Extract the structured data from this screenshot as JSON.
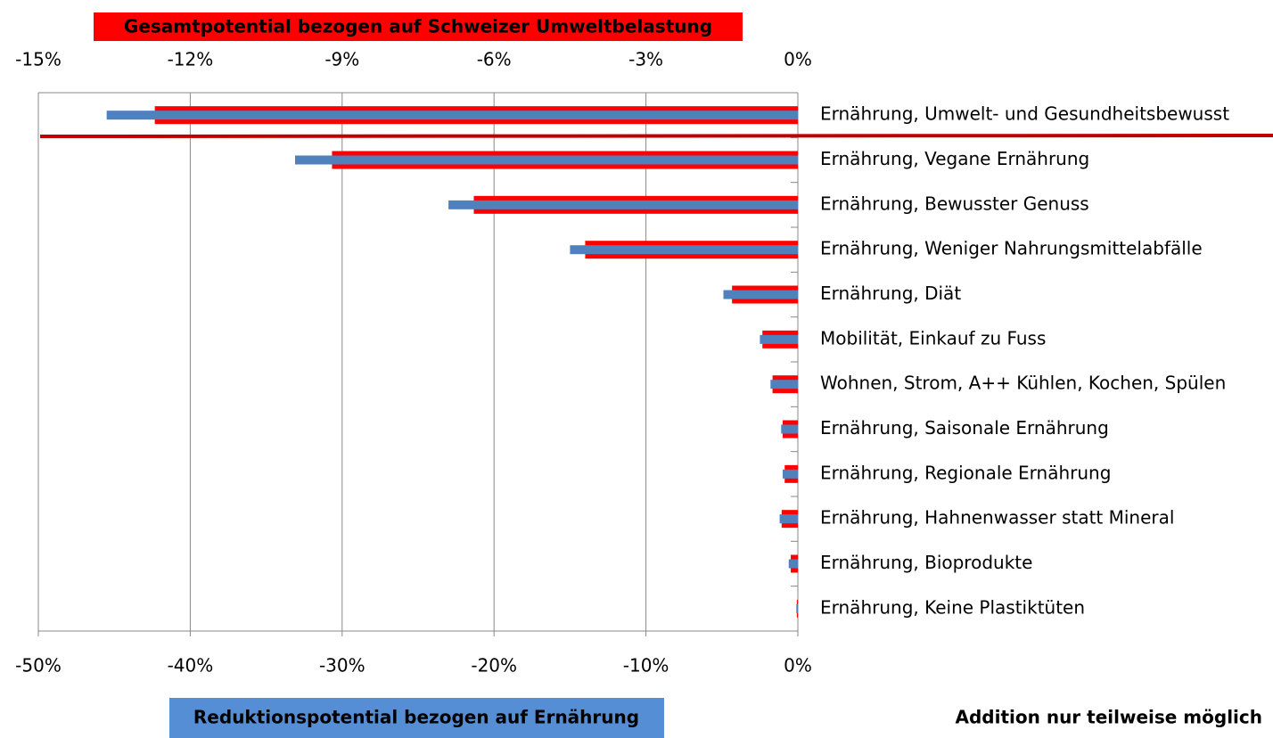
{
  "chart_data": {
    "type": "bar",
    "orientation": "horizontal",
    "categories": [
      "Ernährung, Umwelt- und Gesundheitsbewusst",
      "Ernährung, Vegane Ernährung",
      "Ernährung, Bewusster Genuss",
      "Ernährung, Weniger Nahrungsmittelabfälle",
      "Ernährung, Diät",
      "Mobilität, Einkauf zu Fuss",
      "Wohnen, Strom, A++ Kühlen, Kochen, Spülen",
      "Ernährung, Saisonale Ernährung",
      "Ernährung, Regionale Ernährung",
      "Ernährung, Hahnenwasser statt Mineral",
      "Ernährung, Bioprodukte",
      "Ernährung, Keine Plastiktüten"
    ],
    "series": [
      {
        "name": "Gesamtpotential bezogen auf Schweizer Umweltbelastung",
        "color": "#ff0000",
        "axis": "x2",
        "values": [
          -12.7,
          -9.2,
          -6.4,
          -4.2,
          -1.3,
          -0.7,
          -0.5,
          -0.3,
          -0.26,
          -0.32,
          -0.14,
          -0.02
        ]
      },
      {
        "name": "Reduktionspotential bezogen auf Ernährung",
        "color": "#4f81bd",
        "axis": "x",
        "values": [
          -45.5,
          -33.1,
          -23.0,
          -15.0,
          -4.9,
          -2.5,
          -1.8,
          -1.1,
          -1.0,
          -1.2,
          -0.6,
          -0.1
        ]
      }
    ],
    "x2lim": [
      -15,
      0
    ],
    "x2ticks": [
      {
        "value": -15,
        "label": "-15%"
      },
      {
        "value": -12,
        "label": "-12%"
      },
      {
        "value": -9,
        "label": "-9%"
      },
      {
        "value": -6,
        "label": "-6%"
      },
      {
        "value": -3,
        "label": "-3%"
      },
      {
        "value": 0,
        "label": "0%"
      }
    ],
    "xlim": [
      -50,
      0
    ],
    "xticks": [
      {
        "value": -50,
        "label": "-50%"
      },
      {
        "value": -40,
        "label": "-40%"
      },
      {
        "value": -30,
        "label": "-30%"
      },
      {
        "value": -20,
        "label": "-20%"
      },
      {
        "value": -10,
        "label": "-10%"
      },
      {
        "value": 0,
        "label": "0%"
      }
    ],
    "grid": true,
    "annotation": "Addition nur teilweise möglich"
  }
}
